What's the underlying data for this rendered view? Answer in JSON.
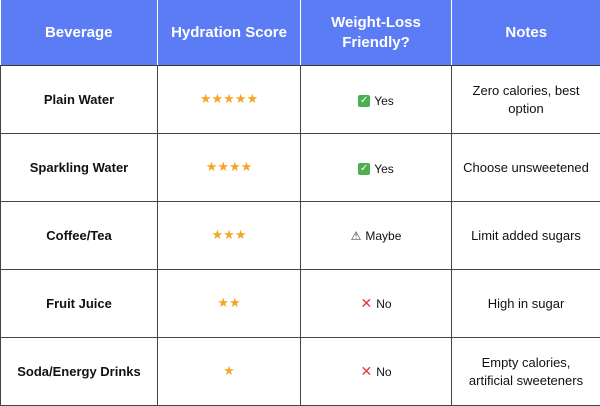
{
  "headers": {
    "beverage": "Beverage",
    "hydration": "Hydration Score",
    "weight_loss": "Weight-Loss Friendly?",
    "notes": "Notes"
  },
  "rows": [
    {
      "beverage": "Plain Water",
      "hydration_stars": "★★★★★",
      "hydration_score": 5,
      "weight_loss_icon": "check-icon",
      "weight_loss": "Yes",
      "notes": "Zero calories, best option"
    },
    {
      "beverage": "Sparkling Water",
      "hydration_stars": "★★★★",
      "hydration_score": 4,
      "weight_loss_icon": "check-icon",
      "weight_loss": "Yes",
      "notes": "Choose unsweetened"
    },
    {
      "beverage": "Coffee/Tea",
      "hydration_stars": "★★★",
      "hydration_score": 3,
      "weight_loss_icon": "warning-icon",
      "weight_loss": "Maybe",
      "notes": "Limit added sugars"
    },
    {
      "beverage": "Fruit Juice",
      "hydration_stars": "★★",
      "hydration_score": 2,
      "weight_loss_icon": "x-icon",
      "weight_loss": "No",
      "notes": "High in sugar"
    },
    {
      "beverage": "Soda/Energy Drinks",
      "hydration_stars": "★",
      "hydration_score": 1,
      "weight_loss_icon": "x-icon",
      "weight_loss": "No",
      "notes": "Empty calories, artificial sweeteners"
    }
  ],
  "colors": {
    "header_bg": "#5b7cf5",
    "star": "#f5a623",
    "check": "#4caf50",
    "x": "#e53935"
  }
}
